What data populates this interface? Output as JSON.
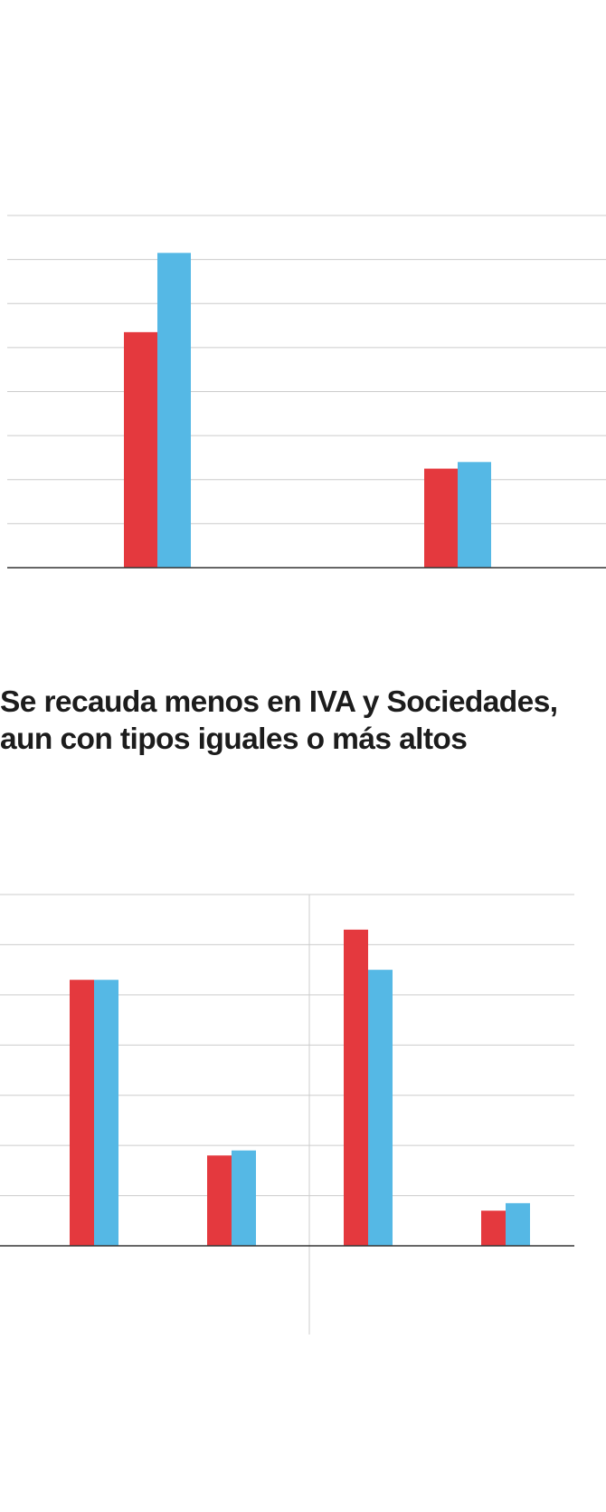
{
  "colors": {
    "series_a": "#e4393e",
    "series_b": "#55b8e5",
    "gridline": "#cccccc",
    "baseline": "#333333",
    "divider": "#cccccc",
    "title_text": "#1c1c1c"
  },
  "section": {
    "title_line1": "Se recauda menos en IVA y Sociedades,",
    "title_line2": "aun con tipos iguales o más altos"
  },
  "chart_data": [
    {
      "type": "bar",
      "title": "",
      "xlabel": "",
      "ylabel": "",
      "ylim": [
        0,
        8
      ],
      "grid": true,
      "categories": [
        "",
        ""
      ],
      "series": [
        {
          "color": "#e4393e",
          "values": [
            5.35,
            2.25
          ]
        },
        {
          "color": "#55b8e5",
          "values": [
            7.15,
            2.4
          ]
        }
      ]
    },
    {
      "type": "bar",
      "title": "",
      "xlabel": "",
      "ylabel": "",
      "ylim": [
        0,
        7
      ],
      "grid": true,
      "panels": 2,
      "categories": [
        "",
        "",
        "",
        ""
      ],
      "series": [
        {
          "color": "#e4393e",
          "values": [
            5.3,
            1.8,
            6.3,
            0.7
          ]
        },
        {
          "color": "#55b8e5",
          "values": [
            5.3,
            1.9,
            5.5,
            0.85
          ]
        }
      ]
    }
  ]
}
